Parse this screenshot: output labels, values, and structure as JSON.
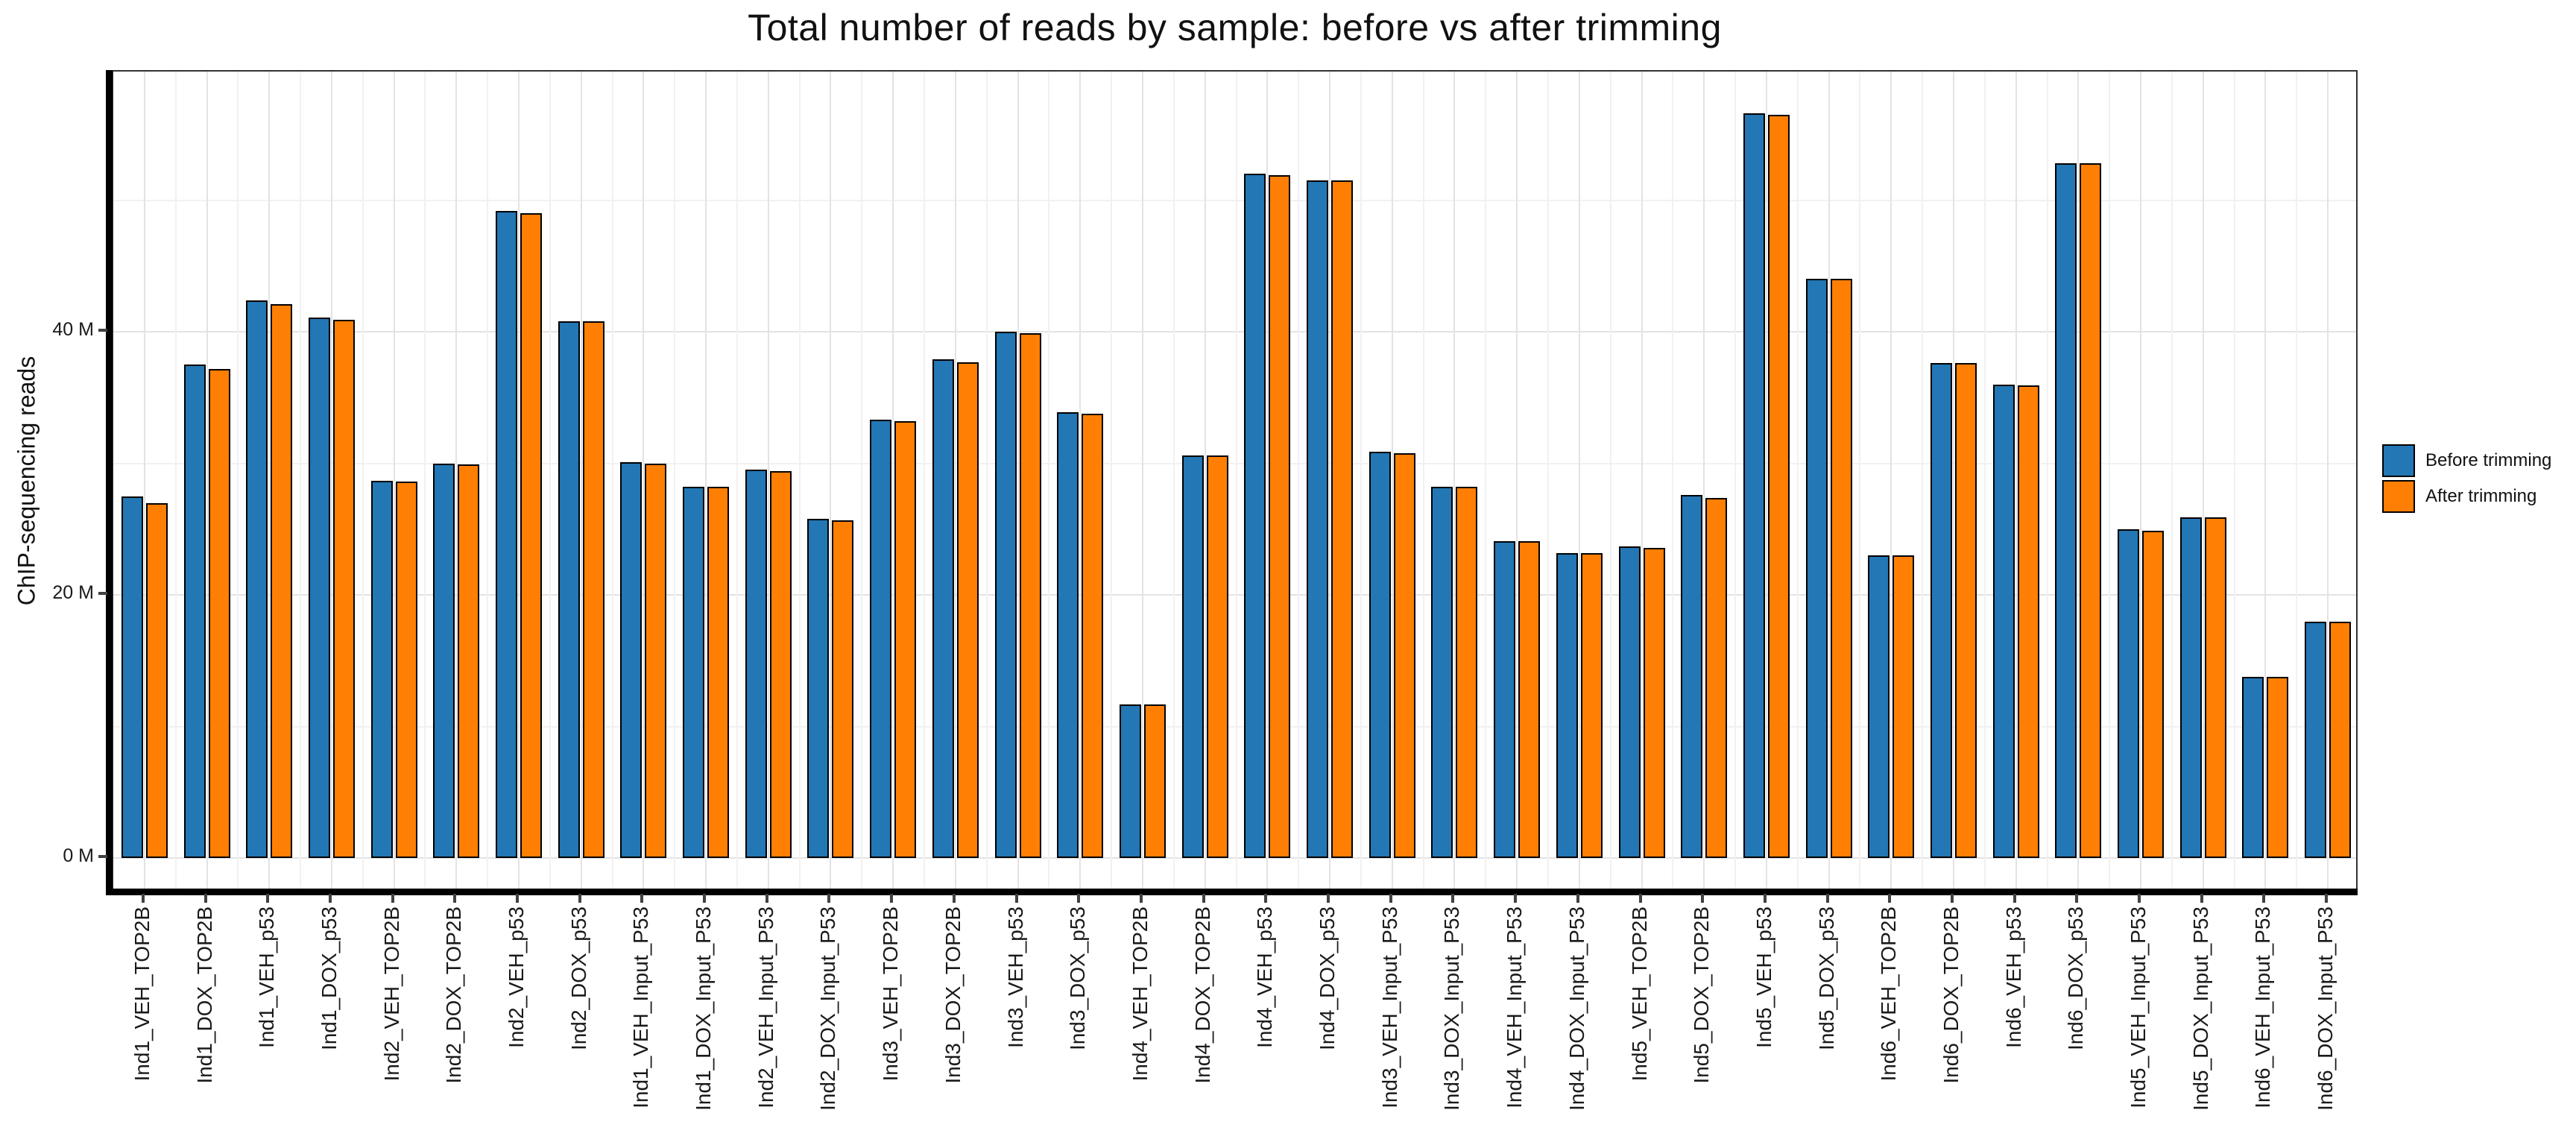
{
  "title": "Total number of reads by sample: before vs after trimming",
  "y_axis": {
    "label": "ChIP-sequencing reads",
    "tick_labels": [
      "0 M",
      "20 M",
      "40 M"
    ],
    "tick_values": [
      0,
      20,
      40
    ]
  },
  "legend": {
    "items": [
      {
        "label": "Before trimming",
        "color": "#2277b4"
      },
      {
        "label": "After trimming",
        "color": "#ff7f05"
      }
    ]
  },
  "colors": {
    "before": "#2277b4",
    "after": "#ff7f05",
    "bar_border": "#000000",
    "grid_major": "#e3e3e3",
    "grid_minor": "#f1f1f1",
    "axis_line": "#000000"
  },
  "chart_data": {
    "type": "bar",
    "title": "Total number of reads by sample: before vs after trimming",
    "xlabel": "",
    "ylabel": "ChIP-sequencing reads",
    "unit": "million reads",
    "ylim": [
      0,
      59.8
    ],
    "yticks": [
      0,
      20,
      40
    ],
    "ytick_labels": [
      "0 M",
      "20 M",
      "40 M"
    ],
    "minor_yticks": [
      10,
      30,
      50
    ],
    "grid": "on",
    "legend_position": "right",
    "categories": [
      "Ind1_VEH_TOP2B",
      "Ind1_DOX_TOP2B",
      "Ind1_VEH_p53",
      "Ind1_DOX_p53",
      "Ind2_VEH_TOP2B",
      "Ind2_DOX_TOP2B",
      "Ind2_VEH_p53",
      "Ind2_DOX_p53",
      "Ind1_VEH_Input_P53",
      "Ind1_DOX_Input_P53",
      "Ind2_VEH_Input_P53",
      "Ind2_DOX_Input_P53",
      "Ind3_VEH_TOP2B",
      "Ind3_DOX_TOP2B",
      "Ind3_VEH_p53",
      "Ind3_DOX_p53",
      "Ind4_VEH_TOP2B",
      "Ind4_DOX_TOP2B",
      "Ind4_VEH_p53",
      "Ind4_DOX_p53",
      "Ind3_VEH_Input_P53",
      "Ind3_DOX_Input_P53",
      "Ind4_VEH_Input_P53",
      "Ind4_DOX_Input_P53",
      "Ind5_VEH_TOP2B",
      "Ind5_DOX_TOP2B",
      "Ind5_VEH_p53",
      "Ind5_DOX_p53",
      "Ind6_VEH_TOP2B",
      "Ind6_DOX_TOP2B",
      "Ind6_VEH_p53",
      "Ind6_DOX_p53",
      "Ind5_VEH_Input_P53",
      "Ind5_DOX_Input_P53",
      "Ind6_VEH_Input_P53",
      "Ind6_DOX_Input_P53"
    ],
    "series": [
      {
        "name": "Before trimming",
        "color": "#2277b4",
        "values": [
          27.5,
          37.5,
          42.4,
          41.1,
          28.7,
          30.0,
          49.2,
          40.8,
          30.1,
          28.2,
          29.5,
          25.8,
          33.3,
          37.9,
          40.0,
          33.9,
          11.7,
          30.6,
          52.0,
          51.5,
          30.9,
          28.2,
          24.1,
          23.2,
          23.7,
          27.6,
          56.6,
          44.0,
          23.0,
          37.6,
          36.0,
          52.8,
          25.0,
          25.9,
          13.8,
          18.0
        ]
      },
      {
        "name": "After trimming",
        "color": "#ff7f05",
        "values": [
          27.0,
          37.2,
          42.1,
          40.9,
          28.6,
          29.9,
          49.0,
          40.8,
          30.0,
          28.2,
          29.4,
          25.7,
          33.2,
          37.7,
          39.9,
          33.8,
          11.7,
          30.6,
          51.9,
          51.5,
          30.8,
          28.2,
          24.1,
          23.2,
          23.6,
          27.4,
          56.5,
          44.0,
          23.0,
          37.6,
          35.9,
          52.8,
          24.9,
          25.9,
          13.8,
          18.0
        ]
      }
    ]
  }
}
